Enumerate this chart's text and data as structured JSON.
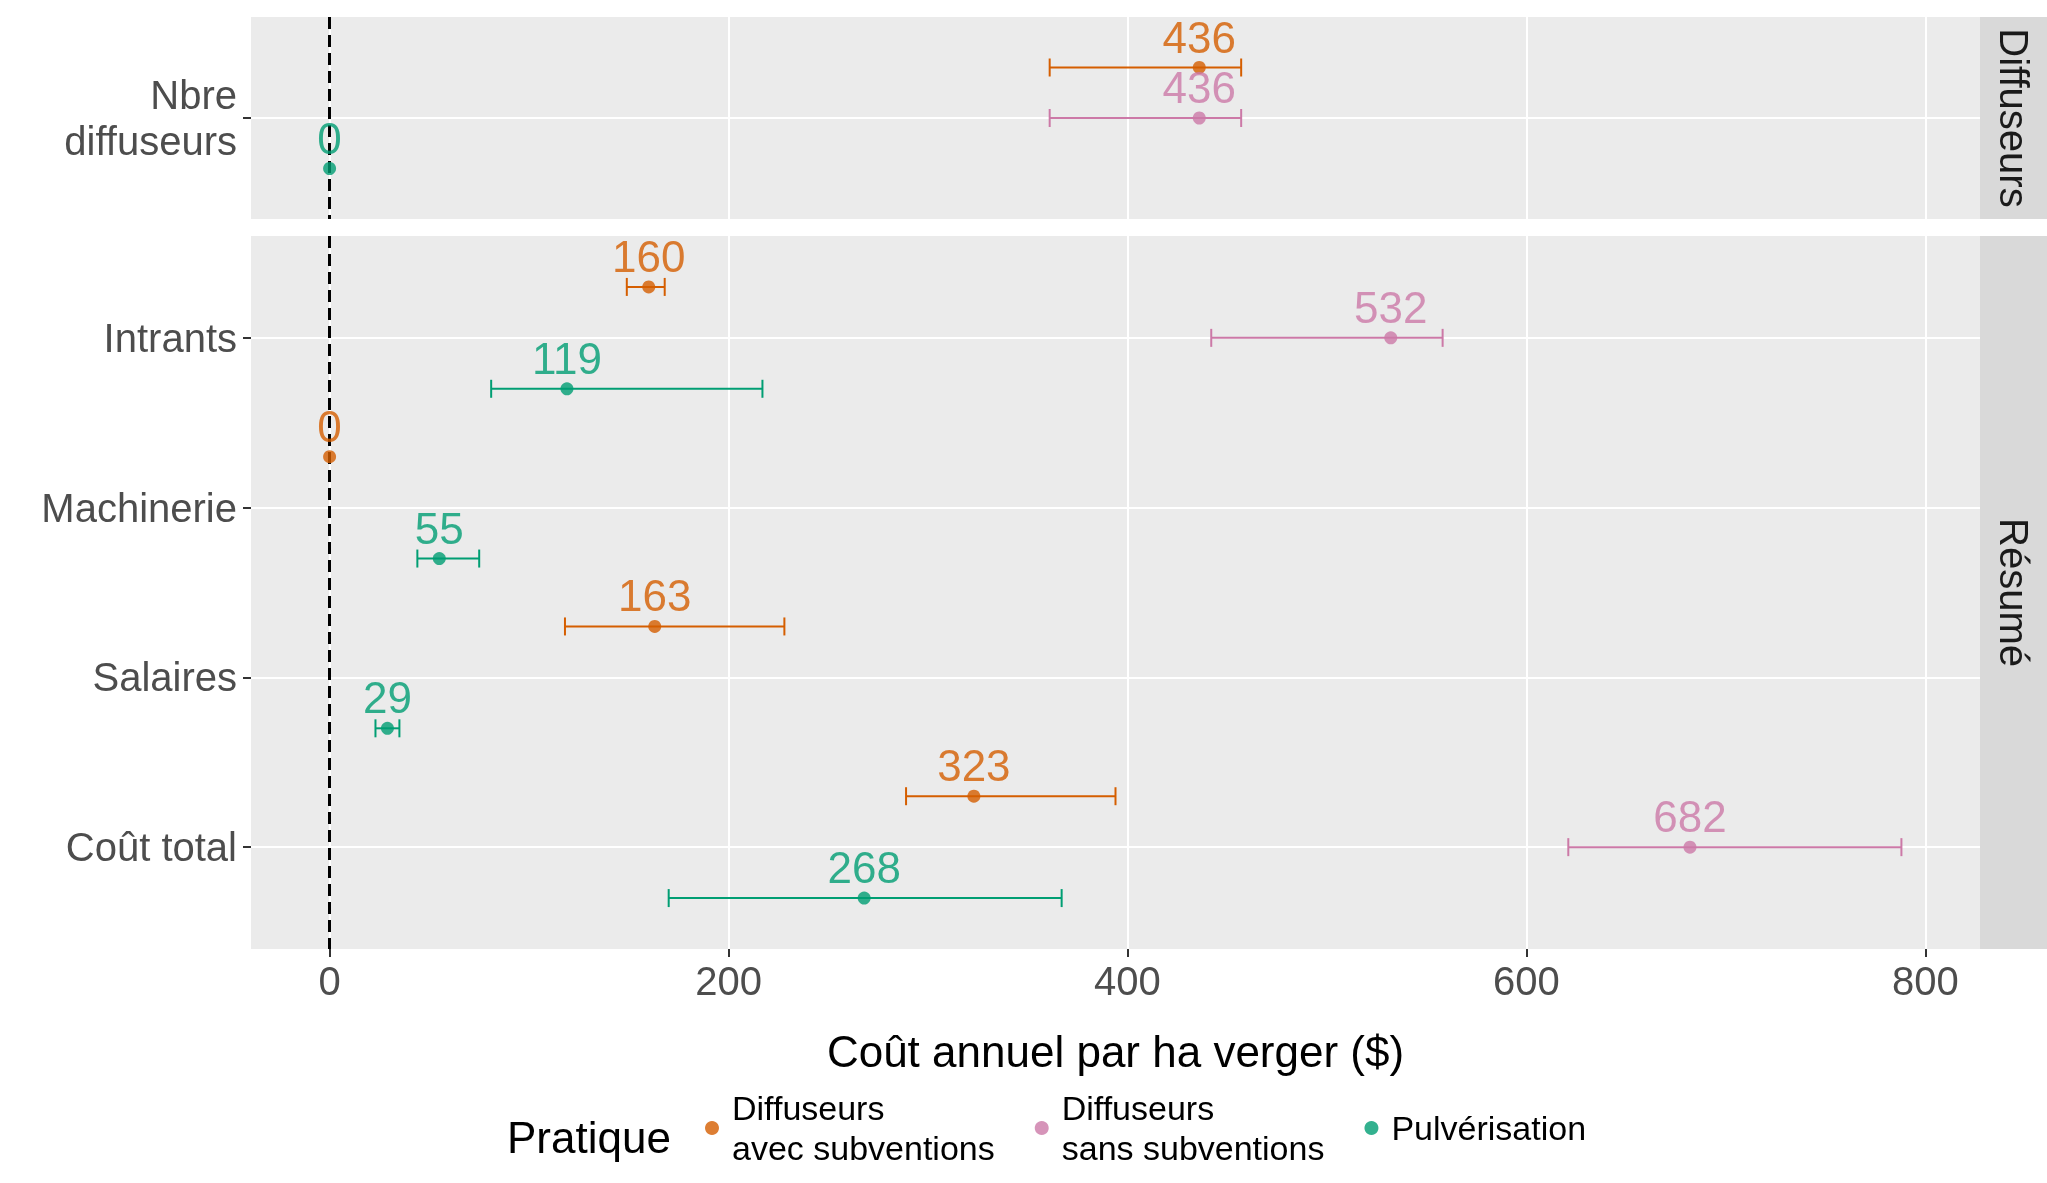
{
  "chart_data": [
    {
      "type": "scatter",
      "orientation": "horizontal",
      "title": "Diffuseurs",
      "categories": [
        "Nbre\ndiffuseurs"
      ],
      "series": [
        {
          "color": "#d55e00",
          "values": [
            436
          ],
          "errors": [
            [
              361,
              457
            ]
          ]
        },
        {
          "color": "#cc79a7",
          "values": [
            436
          ],
          "errors": [
            [
              361,
              457
            ]
          ]
        },
        {
          "color": "#009e73",
          "values": [
            0
          ],
          "errors": [
            null
          ]
        }
      ],
      "xlim": [
        -39.4,
        827.4
      ],
      "xticks": [
        0,
        200,
        400,
        600,
        800
      ],
      "tick_labels": "y",
      "data_labels": true,
      "marker": "circle",
      "grid": true,
      "legend": false,
      "ref_lines": [
        {
          "axis": "x",
          "value": 0,
          "color": "#000000",
          "line_style": "dashed"
        }
      ]
    },
    {
      "type": "scatter",
      "orientation": "horizontal",
      "title": "Résumé",
      "xlabel": "Coût annuel par ha verger ($)",
      "legend_title": "Pratique",
      "categories": [
        "Intrants",
        "Machinerie",
        "Salaires",
        "Coût total"
      ],
      "series": [
        {
          "name": "Diffuseurs\navec subventions",
          "color": "#d55e00",
          "values": [
            160,
            0,
            163,
            323
          ],
          "errors": [
            [
              149,
              168
            ],
            null,
            [
              118,
              228
            ],
            [
              289,
              394
            ]
          ]
        },
        {
          "name": "Diffuseurs\nsans subventions",
          "color": "#cc79a7",
          "values": [
            532,
            null,
            null,
            682
          ],
          "errors": [
            [
              442,
              558
            ],
            null,
            null,
            [
              621,
              788
            ]
          ]
        },
        {
          "name": "Pulvérisation",
          "color": "#009e73",
          "values": [
            119,
            55,
            29,
            268
          ],
          "errors": [
            [
              81,
              217
            ],
            [
              44,
              75
            ],
            [
              23,
              35
            ],
            [
              170,
              367
            ]
          ]
        }
      ],
      "xlim": [
        -39.4,
        827.4
      ],
      "xticks": [
        0,
        200,
        400,
        600,
        800
      ],
      "data_labels": true,
      "marker": "circle",
      "grid": true,
      "legend": "bottom",
      "ref_lines": [
        {
          "axis": "x",
          "value": 0,
          "color": "#000000",
          "line_style": "dashed"
        }
      ]
    }
  ]
}
